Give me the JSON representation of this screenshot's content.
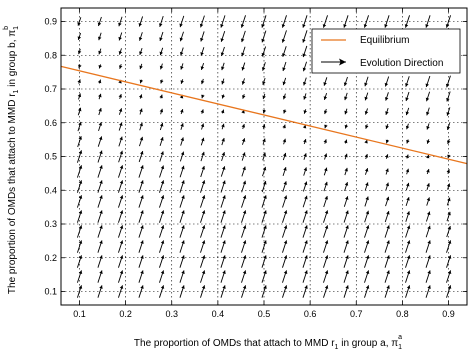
{
  "chart_data": {
    "type": "quiver",
    "xlabel": "The proportion of OMDs that attach to MMD r",
    "xlabel_sub": "1",
    "xlabel_tail": " in group a, π",
    "xlabel_pi_sub": "1",
    "xlabel_pi_sup": "a",
    "ylabel": "The proportion of OMDs that attach to MMD r",
    "ylabel_sub": "1",
    "ylabel_tail": " in group b, π",
    "ylabel_pi_sub": "1",
    "ylabel_pi_sup": "b",
    "xlim": [
      0.06,
      0.94
    ],
    "ylim": [
      0.06,
      0.94
    ],
    "x_ticks": [
      0.1,
      0.2,
      0.3,
      0.4,
      0.5,
      0.6,
      0.7,
      0.8,
      0.9
    ],
    "y_ticks": [
      0.1,
      0.2,
      0.3,
      0.4,
      0.5,
      0.6,
      0.7,
      0.8,
      0.9
    ],
    "grid": true,
    "legend_position": "top-right",
    "series": [
      {
        "name": "Equilibrium",
        "kind": "line",
        "color": "#e8761e",
        "x": [
          0.06,
          0.94
        ],
        "y": [
          0.767,
          0.479
        ]
      },
      {
        "name": "Evolution Direction",
        "kind": "arrows",
        "color": "#000000",
        "grid_x": [
          0.1,
          0.1444,
          0.1889,
          0.2333,
          0.2778,
          0.3222,
          0.3667,
          0.4111,
          0.4556,
          0.5,
          0.5444,
          0.5889,
          0.6333,
          0.6778,
          0.7222,
          0.7667,
          0.8111,
          0.8556,
          0.9
        ],
        "grid_y": [
          0.1,
          0.1444,
          0.1889,
          0.2333,
          0.2778,
          0.3222,
          0.3667,
          0.4111,
          0.4556,
          0.5,
          0.5444,
          0.5889,
          0.6333,
          0.6778,
          0.7222,
          0.7667,
          0.8111,
          0.8556,
          0.9
        ]
      }
    ]
  }
}
